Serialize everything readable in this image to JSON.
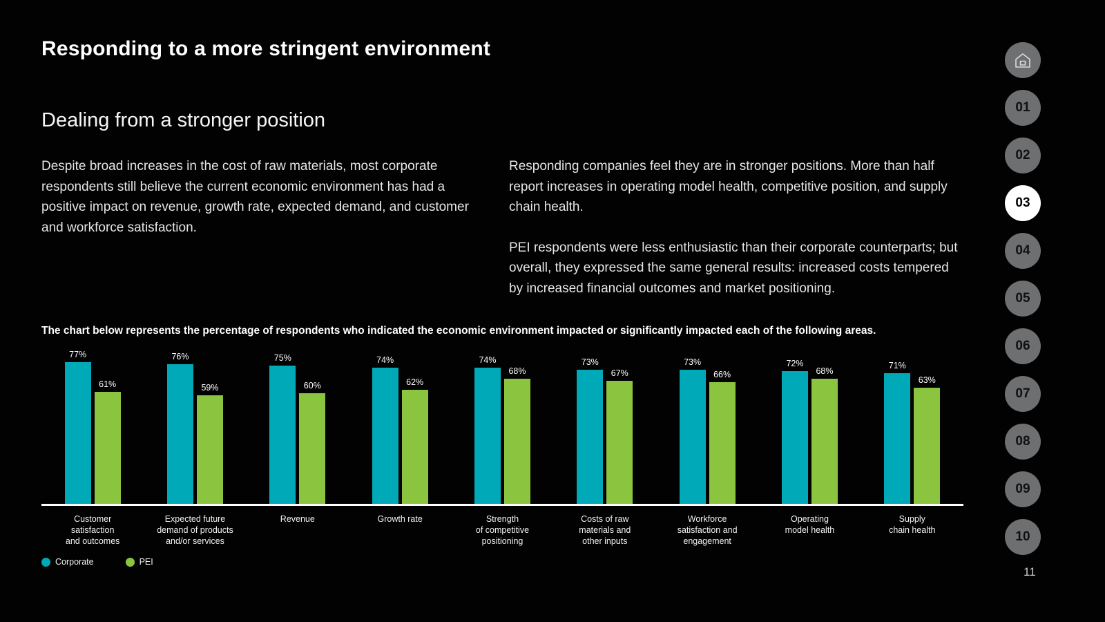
{
  "slide": {
    "title": "Responding to a more stringent environment",
    "subtitle": "Dealing from a stronger position",
    "left_paragraph": "Despite broad increases in the cost of raw materials, most corporate respondents still believe the current economic environment has had a positive impact on revenue, growth rate, expected demand, and customer and workforce satisfaction.",
    "right_paragraphs": [
      "Responding companies feel they are in stronger positions. More than half report increases in operating model health, competitive position, and supply chain health.",
      "PEI respondents were less enthusiastic than their corporate counterparts; but overall, they expressed the same general results: increased costs tempered by increased financial outcomes and market positioning."
    ],
    "chart_caption": "The chart below represents the percentage of respondents who indicated the economic environment impacted or significantly impacted each of the following areas.",
    "page_number": "11"
  },
  "chart_data": {
    "type": "bar",
    "title": "",
    "xlabel": "",
    "ylabel": "",
    "ylim": [
      0,
      85
    ],
    "grid": false,
    "legend_position": "bottom-left",
    "value_suffix": "%",
    "categories": [
      "Customer satisfaction and outcomes",
      "Expected future demand of products and/or services",
      "Revenue",
      "Growth rate",
      "Strength of competitive positioning",
      "Costs of raw materials and other inputs",
      "Workforce satisfaction and engagement",
      "Operating model health",
      "Supply chain health"
    ],
    "categories_lines": [
      [
        "Customer",
        "satisfaction",
        "and outcomes"
      ],
      [
        "Expected future",
        "demand of products",
        "and/or services"
      ],
      [
        "Revenue"
      ],
      [
        "Growth rate"
      ],
      [
        "Strength",
        "of competitive",
        "positioning"
      ],
      [
        "Costs of raw",
        "materials and",
        "other inputs"
      ],
      [
        "Workforce",
        "satisfaction and",
        "engagement"
      ],
      [
        "Operating",
        "model health"
      ],
      [
        "Supply",
        "chain health"
      ]
    ],
    "series": [
      {
        "name": "Corporate",
        "color": "#00a9b7",
        "values": [
          77,
          76,
          75,
          74,
          74,
          73,
          73,
          72,
          71
        ]
      },
      {
        "name": "PEI",
        "color": "#8bc53f",
        "values": [
          61,
          59,
          60,
          62,
          68,
          67,
          66,
          68,
          63
        ]
      }
    ]
  },
  "nav": {
    "home": {
      "icon": "home-icon"
    },
    "items": [
      {
        "label": "01",
        "active": false
      },
      {
        "label": "02",
        "active": false
      },
      {
        "label": "03",
        "active": true
      },
      {
        "label": "04",
        "active": false
      },
      {
        "label": "05",
        "active": false
      },
      {
        "label": "06",
        "active": false
      },
      {
        "label": "07",
        "active": false
      },
      {
        "label": "08",
        "active": false
      },
      {
        "label": "09",
        "active": false
      },
      {
        "label": "10",
        "active": false
      }
    ]
  },
  "colors": {
    "background": "#020202",
    "corporate": "#00a9b7",
    "pei": "#8bc53f",
    "nav_circle": "#6e6f71",
    "nav_active_bg": "#ffffff",
    "axis": "#ffffff"
  }
}
